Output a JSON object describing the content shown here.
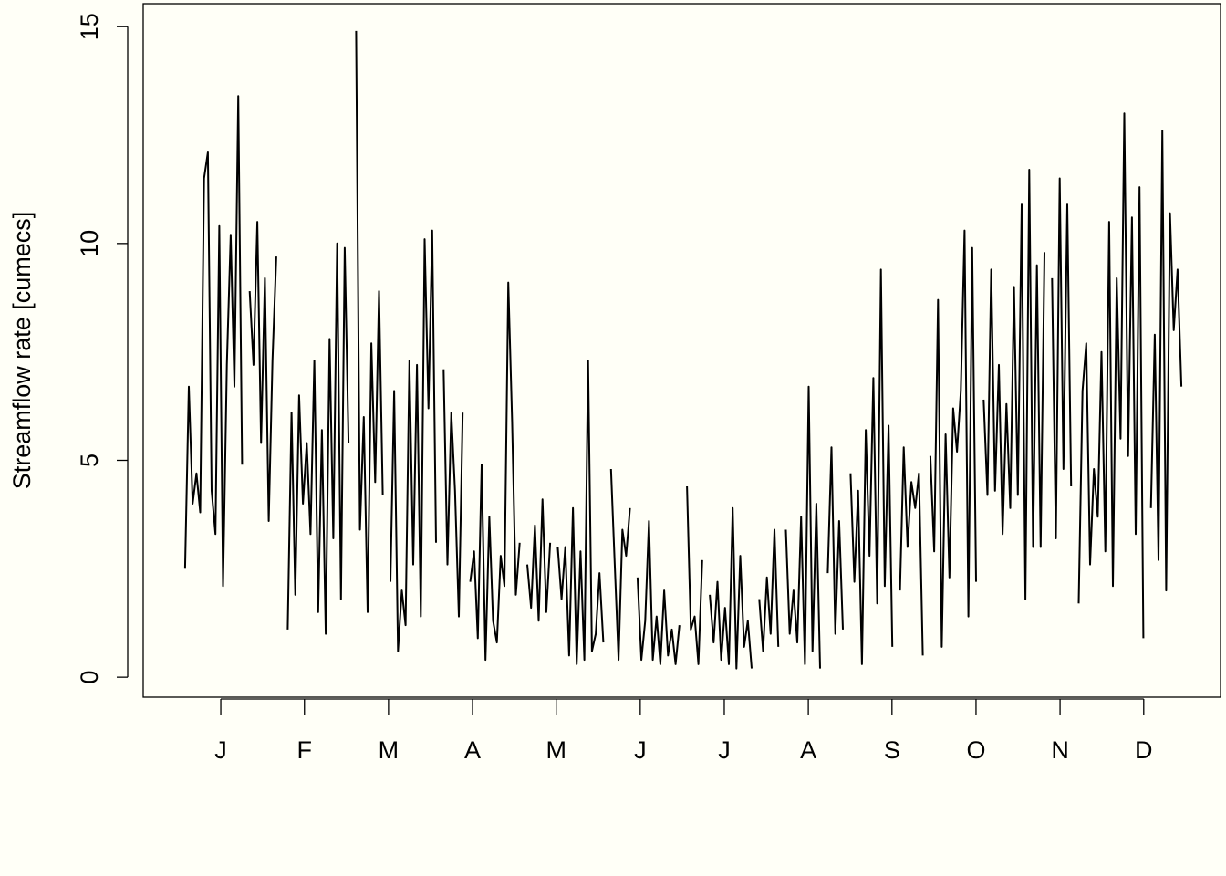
{
  "chart_data": {
    "type": "line",
    "y_label": "Streamflow rate [cumecs]",
    "color": "#000000",
    "x": [
      0,
      1,
      2,
      3,
      4,
      5,
      6,
      7,
      8,
      9,
      10,
      11,
      12,
      13,
      14,
      15,
      16,
      17,
      18,
      19,
      20,
      21,
      22,
      23,
      24,
      25,
      26,
      27,
      28,
      29,
      30,
      31,
      32,
      33,
      34,
      35,
      36,
      37,
      38,
      39,
      40,
      41,
      42,
      43,
      44,
      45,
      46,
      47,
      48,
      49,
      50,
      51,
      52,
      53,
      54,
      55,
      56,
      57,
      58,
      59,
      60,
      61,
      62,
      63,
      64,
      65,
      66,
      67,
      68,
      69,
      70,
      71,
      72,
      73,
      74,
      75,
      76,
      77,
      78,
      79,
      80,
      81,
      82,
      83,
      84,
      85,
      86,
      87,
      88,
      89,
      90,
      91,
      92,
      93,
      94,
      95,
      96,
      97,
      98,
      99,
      100,
      101,
      102,
      103,
      104,
      105,
      106,
      107,
      108,
      109,
      110,
      111,
      112,
      113,
      114,
      115,
      116,
      117,
      118,
      119,
      120,
      121,
      122,
      123,
      124,
      125,
      126,
      127,
      128,
      129,
      130,
      131,
      132,
      133,
      134,
      135,
      136,
      137,
      138,
      139,
      140,
      141,
      142,
      143,
      144,
      145,
      146,
      147,
      148,
      149,
      150,
      151,
      152,
      153,
      154,
      155,
      156,
      157,
      158,
      159,
      160,
      161,
      162,
      163,
      164,
      165,
      166,
      167,
      168,
      169,
      170,
      171,
      172,
      173,
      174,
      175,
      176,
      177,
      178,
      179,
      180,
      181,
      182,
      183,
      184,
      185,
      186,
      187,
      188,
      189,
      190,
      191,
      192,
      193,
      194,
      195,
      196,
      197,
      198,
      199,
      200,
      201,
      202,
      203,
      204,
      205,
      206,
      207,
      208,
      209,
      210,
      211,
      212,
      213,
      214,
      215,
      216,
      217,
      218,
      219,
      220,
      221,
      222,
      223,
      224,
      225,
      226,
      227,
      228,
      229,
      230,
      231,
      232,
      233,
      234,
      235,
      236,
      237,
      238,
      239,
      240,
      241,
      242,
      243,
      244,
      245,
      246,
      247,
      248,
      249,
      250,
      251,
      252,
      253,
      254,
      255,
      256,
      257,
      258,
      259,
      260,
      261,
      262
    ],
    "values": [
      2.5,
      6.7,
      4.0,
      4.7,
      3.8,
      11.5,
      12.1,
      4.3,
      3.3,
      10.4,
      2.1,
      7.2,
      10.2,
      6.7,
      13.4,
      4.9,
      null,
      8.9,
      7.2,
      10.5,
      5.4,
      9.2,
      3.6,
      7.3,
      9.7,
      null,
      null,
      1.1,
      6.1,
      1.9,
      6.5,
      4.0,
      5.4,
      3.3,
      7.3,
      1.5,
      5.7,
      1.0,
      7.8,
      3.2,
      10.0,
      1.8,
      9.9,
      5.4,
      null,
      14.9,
      3.4,
      6.0,
      1.5,
      7.7,
      4.5,
      8.9,
      4.2,
      null,
      2.2,
      6.6,
      0.6,
      2.0,
      1.2,
      7.3,
      2.6,
      7.2,
      1.4,
      10.1,
      6.2,
      10.3,
      3.1,
      null,
      7.1,
      2.6,
      6.1,
      4.3,
      1.4,
      6.1,
      null,
      2.2,
      2.9,
      0.9,
      4.9,
      0.4,
      3.7,
      1.3,
      0.8,
      2.8,
      2.1,
      9.1,
      5.9,
      1.9,
      3.1,
      null,
      2.6,
      1.6,
      3.5,
      1.3,
      4.1,
      1.5,
      3.1,
      null,
      3.0,
      1.8,
      3.0,
      0.5,
      3.9,
      0.3,
      2.9,
      0.4,
      7.3,
      0.6,
      1.0,
      2.4,
      0.8,
      null,
      4.8,
      2.6,
      0.4,
      3.4,
      2.8,
      3.9,
      null,
      2.3,
      0.4,
      1.3,
      3.6,
      0.4,
      1.4,
      0.3,
      2.0,
      0.5,
      1.1,
      0.3,
      1.2,
      null,
      4.4,
      1.1,
      1.4,
      0.3,
      2.7,
      null,
      1.9,
      0.8,
      2.2,
      0.4,
      1.6,
      0.3,
      3.9,
      0.2,
      2.8,
      0.7,
      1.3,
      0.2,
      null,
      1.8,
      0.6,
      2.3,
      1.0,
      3.4,
      0.7,
      null,
      3.4,
      1.0,
      2.0,
      0.8,
      3.7,
      0.3,
      6.7,
      0.6,
      4.0,
      0.2,
      null,
      2.4,
      5.3,
      1.0,
      3.6,
      1.1,
      null,
      4.7,
      2.2,
      4.3,
      0.3,
      5.7,
      2.8,
      6.9,
      1.7,
      9.4,
      2.1,
      5.8,
      0.7,
      null,
      2.0,
      5.3,
      3.0,
      4.5,
      3.9,
      4.7,
      0.5,
      null,
      5.1,
      2.9,
      8.7,
      0.7,
      5.6,
      2.3,
      6.2,
      5.2,
      6.6,
      10.3,
      1.4,
      9.9,
      2.2,
      null,
      6.4,
      4.2,
      9.4,
      4.3,
      7.2,
      3.3,
      6.3,
      3.9,
      9.0,
      4.2,
      10.9,
      1.8,
      11.7,
      3.0,
      9.5,
      3.0,
      9.8,
      null,
      9.2,
      3.2,
      11.5,
      4.8,
      10.9,
      4.4,
      null,
      1.7,
      6.6,
      7.7,
      2.6,
      4.8,
      3.7,
      7.5,
      2.9,
      10.5,
      2.1,
      9.2,
      5.5,
      13.0,
      5.1,
      10.6,
      3.3,
      11.3,
      0.9,
      null,
      3.9,
      7.9,
      2.7,
      12.6,
      2.0,
      10.7,
      8.0,
      9.4,
      6.7
    ],
    "xlim": [
      -11.0,
      272.3
    ],
    "xticks": [
      {
        "value": 9.4,
        "label": "J"
      },
      {
        "value": 31.4,
        "label": "F"
      },
      {
        "value": 53.5,
        "label": "M"
      },
      {
        "value": 75.6,
        "label": "A"
      },
      {
        "value": 97.6,
        "label": "M"
      },
      {
        "value": 119.7,
        "label": "J"
      },
      {
        "value": 141.8,
        "label": "J"
      },
      {
        "value": 163.9,
        "label": "A"
      },
      {
        "value": 185.9,
        "label": "S"
      },
      {
        "value": 208.0,
        "label": "O"
      },
      {
        "value": 230.1,
        "label": "N"
      },
      {
        "value": 252.1,
        "label": "D"
      }
    ],
    "ylim": [
      -0.46,
      15.53
    ],
    "yticks": [
      0,
      5,
      10,
      15
    ]
  }
}
